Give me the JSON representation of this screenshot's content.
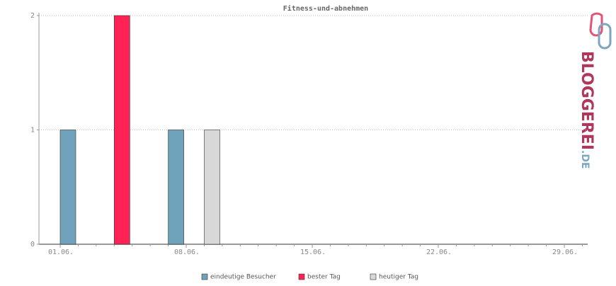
{
  "chart_data": {
    "type": "bar",
    "title": "Fitness-und-abnehmen",
    "categories": [
      "01.06.",
      null,
      null,
      null,
      null,
      null,
      null,
      "08.06.",
      null,
      null,
      null,
      null,
      null,
      null,
      "15.06.",
      null,
      null,
      null,
      null,
      null,
      null,
      "22.06.",
      null,
      null,
      null,
      null,
      null,
      null,
      "29.06.",
      null
    ],
    "series": [
      {
        "name": "eindeutige Besucher",
        "color": "#6fa3bb",
        "values": [
          1,
          null,
          null,
          null,
          null,
          null,
          1,
          null,
          null,
          null,
          null,
          null,
          null,
          null,
          null,
          null,
          null,
          null,
          null,
          null,
          null,
          null,
          null,
          null,
          null,
          null,
          null,
          null,
          null,
          null
        ]
      },
      {
        "name": "bester Tag",
        "color": "#ff2255",
        "values": [
          null,
          null,
          null,
          2,
          null,
          null,
          null,
          null,
          null,
          null,
          null,
          null,
          null,
          null,
          null,
          null,
          null,
          null,
          null,
          null,
          null,
          null,
          null,
          null,
          null,
          null,
          null,
          null,
          null,
          null
        ]
      },
      {
        "name": "heutiger Tag",
        "color": "#d8d8d8",
        "values": [
          null,
          null,
          null,
          null,
          null,
          null,
          null,
          null,
          1,
          null,
          null,
          null,
          null,
          null,
          null,
          null,
          null,
          null,
          null,
          null,
          null,
          null,
          null,
          null,
          null,
          null,
          null,
          null,
          null,
          null
        ]
      }
    ],
    "ylim": [
      0,
      2
    ],
    "yticks": [
      0,
      1,
      2
    ],
    "grid": true
  },
  "logo": {
    "text": "BLOGGEREI",
    "suffix": ".DE"
  }
}
